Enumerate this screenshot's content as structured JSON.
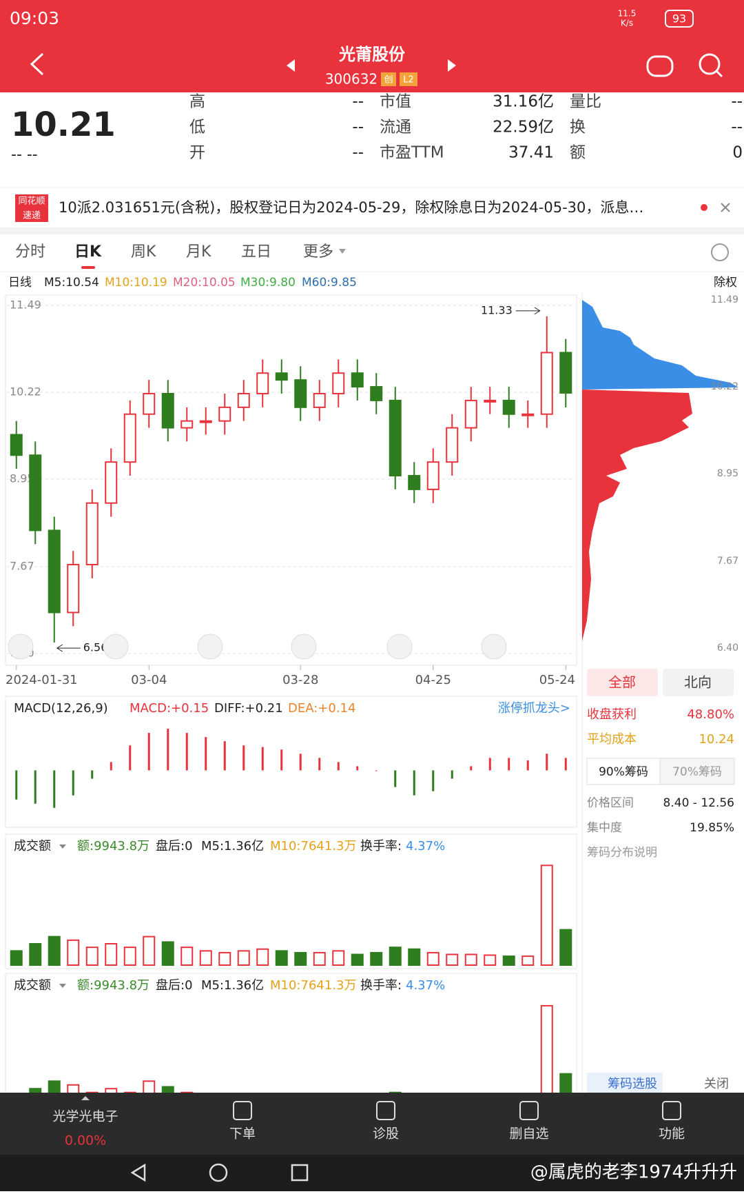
{
  "status": {
    "time": "09:03",
    "net_speed": "11.5",
    "net_unit": "K/s",
    "battery": "93"
  },
  "header": {
    "title": "光莆股份",
    "code": "300632",
    "badges": [
      "创",
      "L2"
    ]
  },
  "quote": {
    "price": "10.21",
    "change": "-- --",
    "fields": [
      {
        "label": "高",
        "value": "--"
      },
      {
        "label": "低",
        "value": "--"
      },
      {
        "label": "开",
        "value": "--"
      },
      {
        "label": "市值",
        "value": "31.16亿"
      },
      {
        "label": "流通",
        "value": "22.59亿"
      },
      {
        "label": "市盈TTM",
        "value": "37.41"
      },
      {
        "label": "量比",
        "value": "--"
      },
      {
        "label": "换",
        "value": "--"
      },
      {
        "label": "额",
        "value": "0"
      }
    ]
  },
  "news": {
    "source": [
      "同花顺",
      "速递"
    ],
    "text": "10派2.031651元(含税)，股权登记日为2024-05-29，除权除息日为2024-05-30，派息…"
  },
  "tabs": [
    "分时",
    "日K",
    "周K",
    "月K",
    "五日",
    "更多"
  ],
  "ma_bar": {
    "label": "日线",
    "items": [
      {
        "text": "M5:10.54",
        "color": "#222222"
      },
      {
        "text": "M10:10.19",
        "color": "#e3a21a"
      },
      {
        "text": "M20:10.05",
        "color": "#e0607e"
      },
      {
        "text": "M30:9.80",
        "color": "#3fae3f"
      },
      {
        "text": "M60:9.85",
        "color": "#2f6fae"
      }
    ],
    "right": "除权"
  },
  "chart_data": {
    "type": "candlestick",
    "categories": [
      "2024-01-31",
      null,
      null,
      null,
      null,
      null,
      null,
      "03-04",
      null,
      null,
      null,
      null,
      null,
      null,
      null,
      "03-28",
      null,
      null,
      null,
      null,
      null,
      null,
      "04-25",
      null,
      null,
      null,
      null,
      null,
      null,
      "05-24"
    ],
    "opens": [
      9.6,
      9.3,
      8.2,
      7.0,
      7.7,
      8.6,
      9.2,
      9.9,
      10.2,
      9.7,
      9.8,
      9.8,
      10.0,
      10.2,
      10.5,
      10.4,
      10.0,
      10.2,
      10.5,
      10.3,
      10.1,
      9.0,
      8.8,
      9.2,
      9.7,
      10.1,
      10.1,
      9.9,
      9.9,
      10.8
    ],
    "closes": [
      9.3,
      8.2,
      7.0,
      7.7,
      8.6,
      9.2,
      9.9,
      10.2,
      9.7,
      9.8,
      9.8,
      10.0,
      10.2,
      10.5,
      10.4,
      10.0,
      10.2,
      10.5,
      10.3,
      10.1,
      9.0,
      8.8,
      9.2,
      9.7,
      10.1,
      10.1,
      9.9,
      9.9,
      10.8,
      10.21
    ],
    "highs": [
      9.8,
      9.5,
      8.4,
      7.9,
      8.8,
      9.4,
      10.1,
      10.4,
      10.4,
      10.0,
      10.0,
      10.2,
      10.4,
      10.7,
      10.7,
      10.6,
      10.4,
      10.7,
      10.7,
      10.5,
      10.3,
      9.2,
      9.4,
      9.9,
      10.3,
      10.3,
      10.3,
      10.1,
      11.33,
      11.0
    ],
    "lows": [
      9.1,
      8.0,
      6.56,
      6.8,
      7.5,
      8.4,
      9.0,
      9.7,
      9.5,
      9.5,
      9.6,
      9.6,
      9.8,
      10.0,
      10.2,
      9.8,
      9.8,
      10.0,
      10.1,
      9.9,
      8.8,
      8.6,
      8.6,
      9.0,
      9.5,
      9.9,
      9.7,
      9.7,
      9.7,
      10.0
    ],
    "up_color": "#e8323c",
    "down_color": "#2e7d1e",
    "ylim": [
      6.4,
      11.49
    ],
    "yticks": [
      11.49,
      10.22,
      8.95,
      7.67,
      {
        "value": 6.4,
        "label": "6.40"
      }
    ],
    "grid": true,
    "max_index": 28,
    "min_index": 2
  },
  "macd": {
    "title": "MACD(12,26,9)",
    "macd": "MACD:+0.15",
    "diff": "DIFF:+0.21",
    "dea": "DEA:+0.14",
    "link": "涨停抓龙头>",
    "values": [
      -0.35,
      -0.4,
      -0.45,
      -0.3,
      -0.1,
      0.1,
      0.3,
      0.45,
      0.5,
      0.45,
      0.4,
      0.35,
      0.3,
      0.28,
      0.25,
      0.2,
      0.15,
      0.1,
      0.05,
      0.0,
      -0.2,
      -0.3,
      -0.25,
      -0.1,
      0.05,
      0.15,
      0.15,
      0.12,
      0.2,
      0.15
    ],
    "ylim": [
      -0.6,
      0.6
    ]
  },
  "volume": {
    "title": "成交额",
    "amount": "额:9943.8万",
    "after": "盘后:0",
    "m5": "M5:1.36亿",
    "m10": "M10:7641.3万",
    "turnover_label": "换手率:",
    "turnover": "4.37%",
    "values": [
      4000,
      6000,
      8000,
      7000,
      5000,
      6000,
      5000,
      8000,
      6500,
      5000,
      4000,
      3500,
      4000,
      4500,
      4000,
      3500,
      3500,
      4000,
      3000,
      3500,
      5000,
      4500,
      3500,
      3000,
      3000,
      2800,
      2500,
      2500,
      28000,
      9943.8
    ],
    "ylim": [
      0,
      30000
    ]
  },
  "chips": {
    "tabs": [
      "全部",
      "北向"
    ],
    "profit_label": "收盘获利",
    "profit": "48.80%",
    "cost_label": "平均成本",
    "cost": "10.24",
    "buttons": [
      "90%筹码",
      "70%筹码"
    ],
    "range_label": "价格区间",
    "range": "8.40 - 12.56",
    "conc_label": "集中度",
    "conc": "19.85%",
    "help": "筹码分布说明",
    "select": "筹码选股",
    "close": "关闭"
  },
  "nav": {
    "sector": "光学光电子",
    "sector_change": "0.00%",
    "items": [
      "下单",
      "诊股",
      "删自选",
      "功能"
    ]
  },
  "watermark": "@属虎的老李1974升升升"
}
